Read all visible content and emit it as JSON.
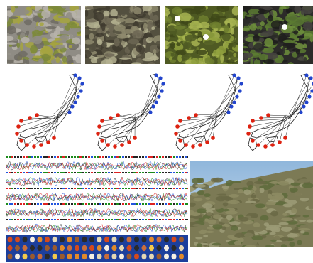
{
  "photos": [
    {
      "name": "moss-photo-1",
      "colors": [
        "#8f8c84",
        "#b7b3aa",
        "#6e6b63",
        "#7d8a3a",
        "#a6a53e",
        "#c4c14f"
      ]
    },
    {
      "name": "moss-photo-2",
      "colors": [
        "#54503f",
        "#6c6653",
        "#3f3b2f",
        "#8e8a6d",
        "#b4b190",
        "#cfcfb3"
      ]
    },
    {
      "name": "moss-photo-3",
      "colors": [
        "#4f5a23",
        "#6f7f2f",
        "#8fa03d",
        "#3e4819",
        "#a8b552",
        "#ffffff"
      ]
    },
    {
      "name": "moss-photo-4",
      "colors": [
        "#2c2b29",
        "#454340",
        "#1f1e1c",
        "#5a7a31",
        "#6e8f3c",
        "#ffffff"
      ]
    }
  ],
  "maps": {
    "colors": {
      "north": "#2244cc",
      "south": "#dd2211",
      "outline": "#222222"
    }
  },
  "sequences": {
    "tracks": 5,
    "colors": [
      "#1a8a1a",
      "#222222",
      "#2255dd",
      "#dd2222"
    ]
  },
  "beads": {
    "background": "#1c3f9c",
    "colors": [
      "#e08a2a",
      "#d24a1e",
      "#f2c94c",
      "#e3d7b4",
      "#9a5a2e",
      "#2a2a2a",
      "#f5efe2",
      "#c96d3b"
    ]
  },
  "landscape": {
    "sky_top": "#8fb6db",
    "sky_bottom": "#cfe0ef",
    "hill_colors": [
      "#7c7a55",
      "#8d8b63",
      "#6a6946",
      "#9b9a76",
      "#5f6b3d"
    ]
  }
}
